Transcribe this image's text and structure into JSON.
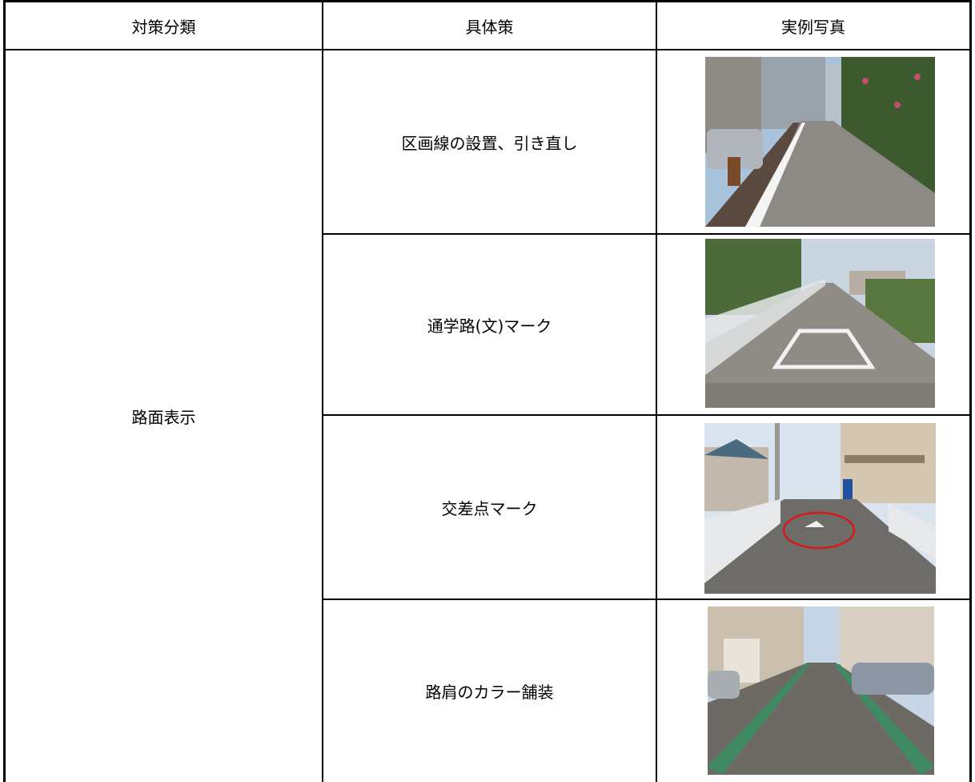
{
  "header": {
    "columns": [
      "対策分類",
      "具体策",
      "実例写真"
    ]
  },
  "table": {
    "category": "路面表示",
    "rows": [
      "区画線の設置、引き直し",
      "通学路(文)マーク",
      "交差点マーク",
      "路肩のカラー舗装"
    ]
  }
}
